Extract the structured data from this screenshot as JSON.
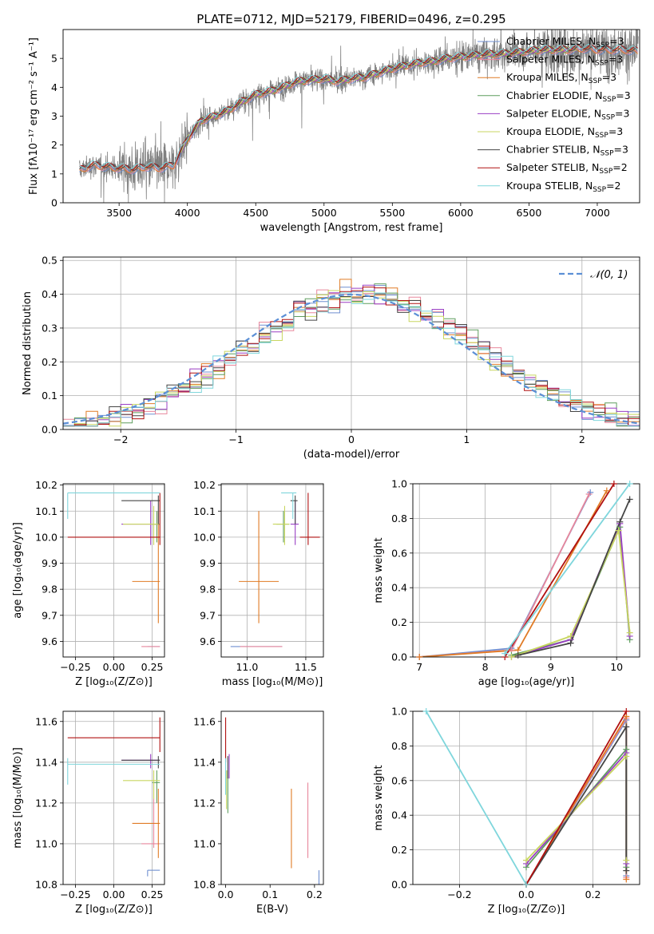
{
  "figure": {
    "title": "PLATE=0712, MJD=52179, FIBERID=0496, z=0.295"
  },
  "colors": {
    "chabrier_miles": "#6f8fd0",
    "salpeter_miles": "#e8879c",
    "kroupa_miles": "#e07b25",
    "chabrier_elodie": "#5f9e5f",
    "salpeter_elodie": "#9a3fc4",
    "kroupa_elodie": "#c8d660",
    "chabrier_stelib": "#454545",
    "salpeter_stelib": "#b01010",
    "kroupa_stelib": "#7fd6dc",
    "data": "#808080",
    "normal": "#5b8fd6"
  },
  "models": [
    {
      "key": "chabrier_miles",
      "label": "Chabrier MILES, N",
      "sub": "SSP",
      "suffix": "=3"
    },
    {
      "key": "salpeter_miles",
      "label": "Salpeter MILES, N",
      "sub": "SSP",
      "suffix": "=3"
    },
    {
      "key": "kroupa_miles",
      "label": "Kroupa MILES, N",
      "sub": "SSP",
      "suffix": "=3"
    },
    {
      "key": "chabrier_elodie",
      "label": "Chabrier ELODIE, N",
      "sub": "SSP",
      "suffix": "=3"
    },
    {
      "key": "salpeter_elodie",
      "label": "Salpeter ELODIE, N",
      "sub": "SSP",
      "suffix": "=3"
    },
    {
      "key": "kroupa_elodie",
      "label": "Kroupa ELODIE, N",
      "sub": "SSP",
      "suffix": "=3"
    },
    {
      "key": "chabrier_stelib",
      "label": "Chabrier STELIB, N",
      "sub": "SSP",
      "suffix": "=3"
    },
    {
      "key": "salpeter_stelib",
      "label": "Salpeter STELIB, N",
      "sub": "SSP",
      "suffix": "=2"
    },
    {
      "key": "kroupa_stelib",
      "label": "Kroupa STELIB, N",
      "sub": "SSP",
      "suffix": "=2"
    }
  ],
  "chart_data": [
    {
      "id": "spectrum",
      "type": "line",
      "title": "PLATE=0712, MJD=52179, FIBERID=0496, z=0.295",
      "xlabel": "wavelength [Angstrom, rest frame]",
      "ylabel": "Flux [fλ10⁻¹⁷ erg cm⁻² s⁻¹ A⁻¹]",
      "xlim": [
        3090,
        7310
      ],
      "ylim": [
        0,
        6
      ],
      "xticks": [
        3500,
        4000,
        4500,
        5000,
        5500,
        6000,
        6500,
        7000
      ],
      "yticks": [
        0,
        1,
        2,
        3,
        4,
        5
      ],
      "grid": false,
      "legend": "right",
      "continuum": {
        "x": [
          3200,
          3300,
          3400,
          3500,
          3600,
          3700,
          3800,
          3900,
          4000,
          4100,
          4200,
          4300,
          4400,
          4500,
          4600,
          4700,
          4800,
          4900,
          5000,
          5100,
          5200,
          5300,
          5400,
          5500,
          5600,
          5700,
          5800,
          5900,
          6000,
          6100,
          6200,
          6300,
          6400,
          6500,
          6600,
          6700,
          6800,
          6900,
          7000,
          7100,
          7200,
          7300
        ],
        "y": [
          1.1,
          1.3,
          1.25,
          1.2,
          1.15,
          1.25,
          1.2,
          1.3,
          2.2,
          2.85,
          3.0,
          3.2,
          3.5,
          3.75,
          3.85,
          4.0,
          4.2,
          4.25,
          4.3,
          4.2,
          4.3,
          4.35,
          4.5,
          4.65,
          4.75,
          4.85,
          4.9,
          5.0,
          5.05,
          5.1,
          5.15,
          5.15,
          5.2,
          5.25,
          5.3,
          5.3,
          5.3,
          5.35,
          5.3,
          5.3,
          5.3,
          5.25
        ]
      },
      "data_noise_amplitude": 0.6
    },
    {
      "id": "residuals",
      "type": "histogram",
      "xlabel": "(data-model)/error",
      "ylabel": "Normed distribution",
      "xlim": [
        -2.5,
        2.5
      ],
      "ylim": [
        0,
        0.51
      ],
      "xticks": [
        -2,
        -1,
        0,
        1,
        2
      ],
      "yticks": [
        0.0,
        0.1,
        0.2,
        0.3,
        0.4,
        0.5
      ],
      "grid": true,
      "legend": "top-right",
      "normal_label": "𝒩(0, 1)",
      "bin_width": 0.1
    },
    {
      "id": "age-vs-Z",
      "type": "scatter",
      "xlabel": "Z [log₁₀(Z/Z⊙)]",
      "ylabel": "age  [log₁₀(age/yr)]",
      "xlim": [
        -0.33,
        0.33
      ],
      "ylim": [
        9.54,
        10.205
      ],
      "xticks": [
        -0.25,
        0.0,
        0.25
      ],
      "yticks": [
        9.6,
        9.7,
        9.8,
        9.9,
        10.0,
        10.1,
        10.2
      ],
      "grid": true
    },
    {
      "id": "age-vs-mass",
      "type": "scatter",
      "xlabel": "mass [log₁₀(M/M⊙)]",
      "xlim": [
        10.78,
        11.65
      ],
      "ylim": [
        9.54,
        10.205
      ],
      "xticks": [
        11.0,
        11.5
      ],
      "yticks": [
        9.6,
        9.7,
        9.8,
        9.9,
        10.0,
        10.1,
        10.2
      ],
      "grid": true
    },
    {
      "id": "massweight-vs-age",
      "type": "line",
      "xlabel": "age  [log₁₀(age/yr)]",
      "ylabel": "mass weight",
      "xlim": [
        6.9,
        10.35
      ],
      "ylim": [
        0,
        1.0
      ],
      "xticks": [
        7,
        8,
        9,
        10
      ],
      "yticks": [
        0.0,
        0.2,
        0.4,
        0.6,
        0.8,
        1.0
      ],
      "grid": true
    },
    {
      "id": "mass-vs-Z",
      "type": "scatter",
      "xlabel": "Z [log₁₀(Z/Z⊙)]",
      "ylabel": "mass [log₁₀(M/M⊙)]",
      "xlim": [
        -0.33,
        0.33
      ],
      "ylim": [
        10.8,
        11.65
      ],
      "xticks": [
        -0.25,
        0.0,
        0.25
      ],
      "yticks": [
        10.8,
        11.0,
        11.2,
        11.4,
        11.6
      ],
      "grid": true
    },
    {
      "id": "mass-vs-ebv",
      "type": "scatter",
      "xlabel": "E(B-V)",
      "xlim": [
        -0.01,
        0.22
      ],
      "ylim": [
        10.8,
        11.65
      ],
      "xticks": [
        0.0,
        0.1,
        0.2
      ],
      "yticks": [
        10.8,
        11.0,
        11.2,
        11.4,
        11.6
      ],
      "grid": false
    },
    {
      "id": "massweight-vs-Z",
      "type": "line",
      "xlabel": "Z [log₁₀(Z/Z⊙)]",
      "ylabel": "mass weight",
      "xlim": [
        -0.34,
        0.34
      ],
      "ylim": [
        0,
        1.0
      ],
      "xticks": [
        -0.2,
        0.0,
        0.2
      ],
      "yticks": [
        0.0,
        0.2,
        0.4,
        0.6,
        0.8,
        1.0
      ],
      "grid": true
    }
  ],
  "fits": [
    {
      "key": "chabrier_miles",
      "Z": 0.22,
      "Zlo": 0.22,
      "Zhi": 0.3,
      "age": 9.58,
      "ageLo": 9.58,
      "ageHi": 9.58,
      "mass": 11.0,
      "massLo": 10.86,
      "massHi": 11.3,
      "massZ": 10.87,
      "massZlo": 10.84,
      "massZhi": 10.87,
      "ebv": 0.21,
      "mw_age": [
        [
          7.0,
          0.0
        ],
        [
          8.4,
          0.05
        ],
        [
          9.6,
          0.95
        ]
      ],
      "mw_Z": [
        [
          0.0,
          0.0
        ],
        [
          0.3,
          0.95
        ],
        [
          0.3,
          0.05
        ]
      ]
    },
    {
      "key": "salpeter_miles",
      "Z": 0.26,
      "Zlo": 0.18,
      "Zhi": 0.3,
      "age": 9.58,
      "ageLo": 9.58,
      "ageHi": 9.58,
      "mass": 11.05,
      "massLo": 10.94,
      "massHi": 11.3,
      "massZ": 11.0,
      "massZlo": 10.98,
      "massZhi": 11.3,
      "ebv": 0.185,
      "mw_age": [
        [
          7.0,
          0.0
        ],
        [
          8.4,
          0.04
        ],
        [
          9.58,
          0.94
        ]
      ],
      "mw_Z": [
        [
          0.0,
          0.0
        ],
        [
          0.3,
          0.96
        ],
        [
          0.3,
          0.04
        ]
      ]
    },
    {
      "key": "kroupa_miles",
      "Z": 0.29,
      "Zlo": 0.12,
      "Zhi": 0.3,
      "age": 9.83,
      "ageLo": 9.67,
      "ageHi": 10.1,
      "mass": 11.1,
      "massLo": 10.93,
      "massHi": 11.27,
      "massZ": 11.1,
      "massZlo": 10.93,
      "massZhi": 11.27,
      "ebv": 0.148,
      "mw_age": [
        [
          7.0,
          0.0
        ],
        [
          8.5,
          0.04
        ],
        [
          9.85,
          0.96
        ]
      ],
      "mw_Z": [
        [
          0.0,
          0.0
        ],
        [
          0.3,
          0.97
        ],
        [
          0.3,
          0.03
        ]
      ]
    },
    {
      "key": "chabrier_elodie",
      "Z": 0.28,
      "Zlo": 0.25,
      "Zhi": 0.3,
      "age": 10.05,
      "ageLo": 9.98,
      "ageHi": 10.1,
      "mass": 11.31,
      "massLo": 11.25,
      "massHi": 11.36,
      "massZ": 11.3,
      "massZlo": 11.2,
      "massZhi": 11.36,
      "ebv": 0.005,
      "mw_age": [
        [
          8.4,
          0.01
        ],
        [
          9.3,
          0.1
        ],
        [
          10.05,
          0.75
        ],
        [
          10.2,
          0.1
        ]
      ],
      "mw_Z": [
        [
          0.0,
          0.1
        ],
        [
          0.3,
          0.78
        ],
        [
          0.3,
          0.1
        ]
      ]
    },
    {
      "key": "salpeter_elodie",
      "Z": 0.24,
      "Zlo": 0.05,
      "Zhi": 0.3,
      "age": 10.05,
      "ageLo": 9.97,
      "ageHi": 10.14,
      "mass": 11.41,
      "massLo": 11.37,
      "massHi": 11.44,
      "massZ": 11.41,
      "massZlo": 11.37,
      "massZhi": 11.44,
      "ebv": 0.008,
      "mw_age": [
        [
          8.4,
          0.0
        ],
        [
          9.3,
          0.1
        ],
        [
          10.05,
          0.77
        ],
        [
          10.2,
          0.12
        ]
      ],
      "mw_Z": [
        [
          0.0,
          0.12
        ],
        [
          0.3,
          0.76
        ],
        [
          0.3,
          0.12
        ]
      ]
    },
    {
      "key": "kroupa_elodie",
      "Z": 0.26,
      "Zlo": 0.06,
      "Zhi": 0.3,
      "age": 10.05,
      "ageLo": 9.97,
      "ageHi": 10.12,
      "mass": 11.32,
      "massLo": 11.22,
      "massHi": 11.36,
      "massZ": 11.31,
      "massZlo": 11.22,
      "massZhi": 11.36,
      "ebv": 0.002,
      "mw_age": [
        [
          8.4,
          0.0
        ],
        [
          9.3,
          0.12
        ],
        [
          10.03,
          0.73
        ],
        [
          10.2,
          0.14
        ]
      ],
      "mw_Z": [
        [
          0.0,
          0.14
        ],
        [
          0.3,
          0.74
        ],
        [
          0.3,
          0.14
        ]
      ]
    },
    {
      "key": "chabrier_stelib",
      "Z": 0.29,
      "Zlo": 0.05,
      "Zhi": 0.3,
      "age": 10.14,
      "ageLo": 10.05,
      "ageHi": 10.16,
      "mass": 11.41,
      "massLo": 11.37,
      "massHi": 11.43,
      "massZ": 11.41,
      "massZlo": 11.37,
      "massZhi": 11.43,
      "ebv": 0.005,
      "mw_age": [
        [
          8.5,
          0.01
        ],
        [
          9.3,
          0.08
        ],
        [
          10.05,
          0.78
        ],
        [
          10.2,
          0.91
        ]
      ],
      "mw_Z": [
        [
          0.0,
          0.0
        ],
        [
          0.3,
          0.91
        ],
        [
          0.3,
          0.08
        ]
      ]
    },
    {
      "key": "salpeter_stelib",
      "Z": 0.3,
      "Zlo": -0.3,
      "Zhi": 0.3,
      "age": 10.0,
      "ageLo": 9.97,
      "ageHi": 10.17,
      "mass": 11.52,
      "massLo": 11.45,
      "massHi": 11.62,
      "massZ": 11.52,
      "massZlo": 11.45,
      "massZhi": 11.62,
      "ebv": 0.0,
      "mw_age": [
        [
          8.3,
          0.0
        ],
        [
          9.96,
          1.0
        ]
      ],
      "mw_Z": [
        [
          0.0,
          0.0
        ],
        [
          0.3,
          1.0
        ]
      ]
    },
    {
      "key": "kroupa_stelib",
      "Z": -0.3,
      "Zlo": -0.3,
      "Zhi": 0.3,
      "age": 10.17,
      "ageLo": 10.07,
      "ageHi": 10.17,
      "mass": 11.39,
      "massLo": 11.29,
      "massHi": 11.42,
      "massZ": 11.39,
      "massZlo": 11.29,
      "massZhi": 11.42,
      "ebv": 0.0,
      "mw_age": [
        [
          8.3,
          0.02
        ],
        [
          10.2,
          1.0
        ]
      ],
      "mw_Z": [
        [
          -0.3,
          1.0
        ],
        [
          0.0,
          0.0
        ]
      ]
    }
  ]
}
